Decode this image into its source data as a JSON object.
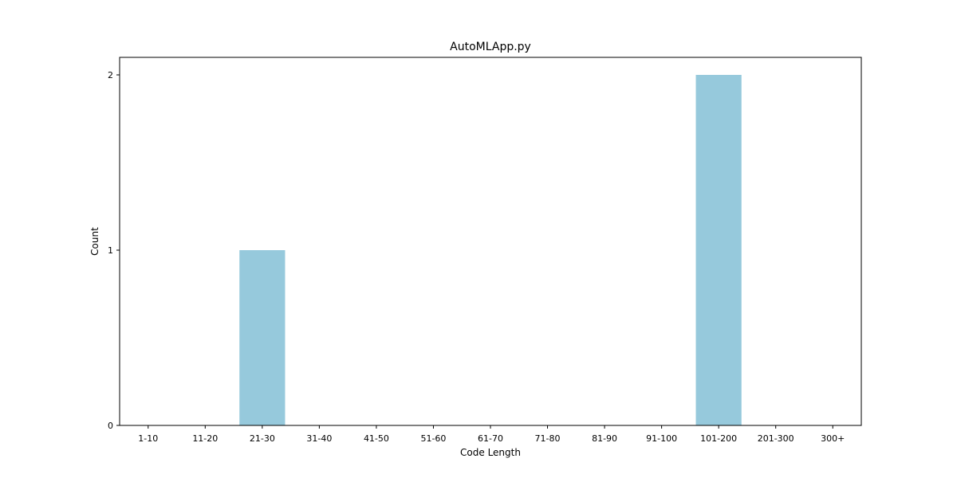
{
  "chart_data": {
    "type": "bar",
    "title": "AutoMLApp.py",
    "xlabel": "Code Length",
    "ylabel": "Count",
    "categories": [
      "1-10",
      "11-20",
      "21-30",
      "31-40",
      "41-50",
      "51-60",
      "61-70",
      "71-80",
      "81-90",
      "91-100",
      "101-200",
      "201-300",
      "300+"
    ],
    "values": [
      0,
      0,
      1,
      0,
      0,
      0,
      0,
      0,
      0,
      0,
      2,
      0,
      0
    ],
    "yticks": [
      0,
      1,
      2
    ],
    "ylim": [
      0,
      2.1
    ],
    "bar_color": "#96c9dc",
    "grid": false,
    "legend": "none"
  }
}
